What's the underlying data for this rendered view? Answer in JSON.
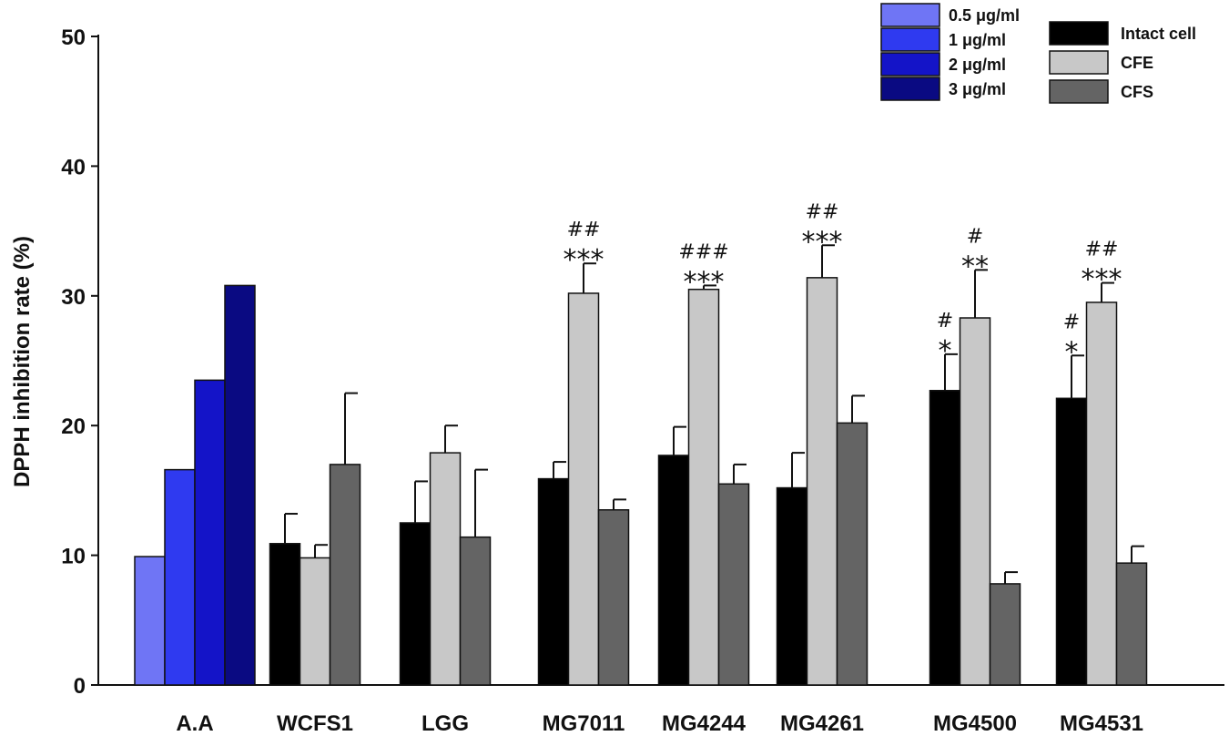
{
  "chart_data": {
    "type": "bar",
    "title": "",
    "xlabel": "",
    "ylabel": "DPPH inhibition rate (%)",
    "ylim": [
      0,
      50
    ],
    "yticks": [
      0,
      10,
      20,
      30,
      40,
      50
    ],
    "categories": [
      "A.A",
      "WCFS1",
      "LGG",
      "MG7011",
      "MG4244",
      "MG4261",
      "MG4500",
      "MG4531"
    ],
    "reference_series": [
      {
        "name": "0.5 μg/ml",
        "color": "#6f75f5",
        "value": 9.9
      },
      {
        "name": "1 μg/ml",
        "color": "#2f3af0",
        "value": 16.6
      },
      {
        "name": "2 μg/ml",
        "color": "#1414c8",
        "value": 23.5
      },
      {
        "name": "3 μg/ml",
        "color": "#0a0a82",
        "value": 30.8
      }
    ],
    "series": [
      {
        "name": "Intact cell",
        "color": "#000000",
        "values": [
          null,
          10.9,
          12.5,
          15.9,
          17.7,
          15.2,
          22.7,
          22.1
        ],
        "errors": [
          null,
          2.3,
          3.2,
          1.3,
          2.2,
          2.7,
          2.8,
          3.3
        ]
      },
      {
        "name": "CFE",
        "color": "#c8c8c8",
        "values": [
          null,
          9.8,
          17.9,
          30.2,
          30.5,
          31.4,
          28.3,
          29.5
        ],
        "errors": [
          null,
          1.0,
          2.1,
          2.3,
          0.3,
          2.5,
          3.7,
          1.5
        ]
      },
      {
        "name": "CFS",
        "color": "#646464",
        "values": [
          null,
          17.0,
          11.4,
          13.5,
          15.5,
          20.2,
          7.8,
          9.4
        ],
        "errors": [
          null,
          5.5,
          5.2,
          0.8,
          1.5,
          2.1,
          0.9,
          1.3
        ]
      }
    ],
    "annotations": [
      {
        "category": "MG7011",
        "series": "CFE",
        "stars": "***",
        "hashes": "##"
      },
      {
        "category": "MG4244",
        "series": "CFE",
        "stars": "***",
        "hashes": "###"
      },
      {
        "category": "MG4261",
        "series": "CFE",
        "stars": "***",
        "hashes": "##"
      },
      {
        "category": "MG4500",
        "series": "Intact cell",
        "stars": "*",
        "hashes": "#"
      },
      {
        "category": "MG4500",
        "series": "CFE",
        "stars": "**",
        "hashes": "#"
      },
      {
        "category": "MG4531",
        "series": "Intact cell",
        "stars": "*",
        "hashes": "#"
      },
      {
        "category": "MG4531",
        "series": "CFE",
        "stars": "***",
        "hashes": "##"
      }
    ],
    "legend_position": "top-right"
  }
}
